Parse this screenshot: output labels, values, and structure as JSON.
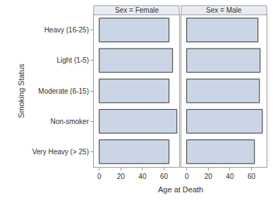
{
  "chart_data": {
    "type": "bar",
    "orientation": "horizontal",
    "xlabel": "Age at Death",
    "ylabel": "Smoking Status",
    "categories": [
      "Heavy (16-25)",
      "Light (1-5)",
      "Moderate (6-15)",
      "Non-smoker",
      "Very Heavy (> 25)"
    ],
    "xlim": [
      -5,
      74
    ],
    "xticks": [
      0,
      20,
      40,
      60
    ],
    "grid": false,
    "color": "#cad5e5",
    "panels": [
      {
        "title": "Sex = Female",
        "values": [
          64.6,
          67.9,
          64.6,
          71.9,
          64.6
        ]
      },
      {
        "title": "Sex = Male",
        "values": [
          66,
          68,
          67.3,
          70,
          62.7
        ]
      }
    ]
  }
}
